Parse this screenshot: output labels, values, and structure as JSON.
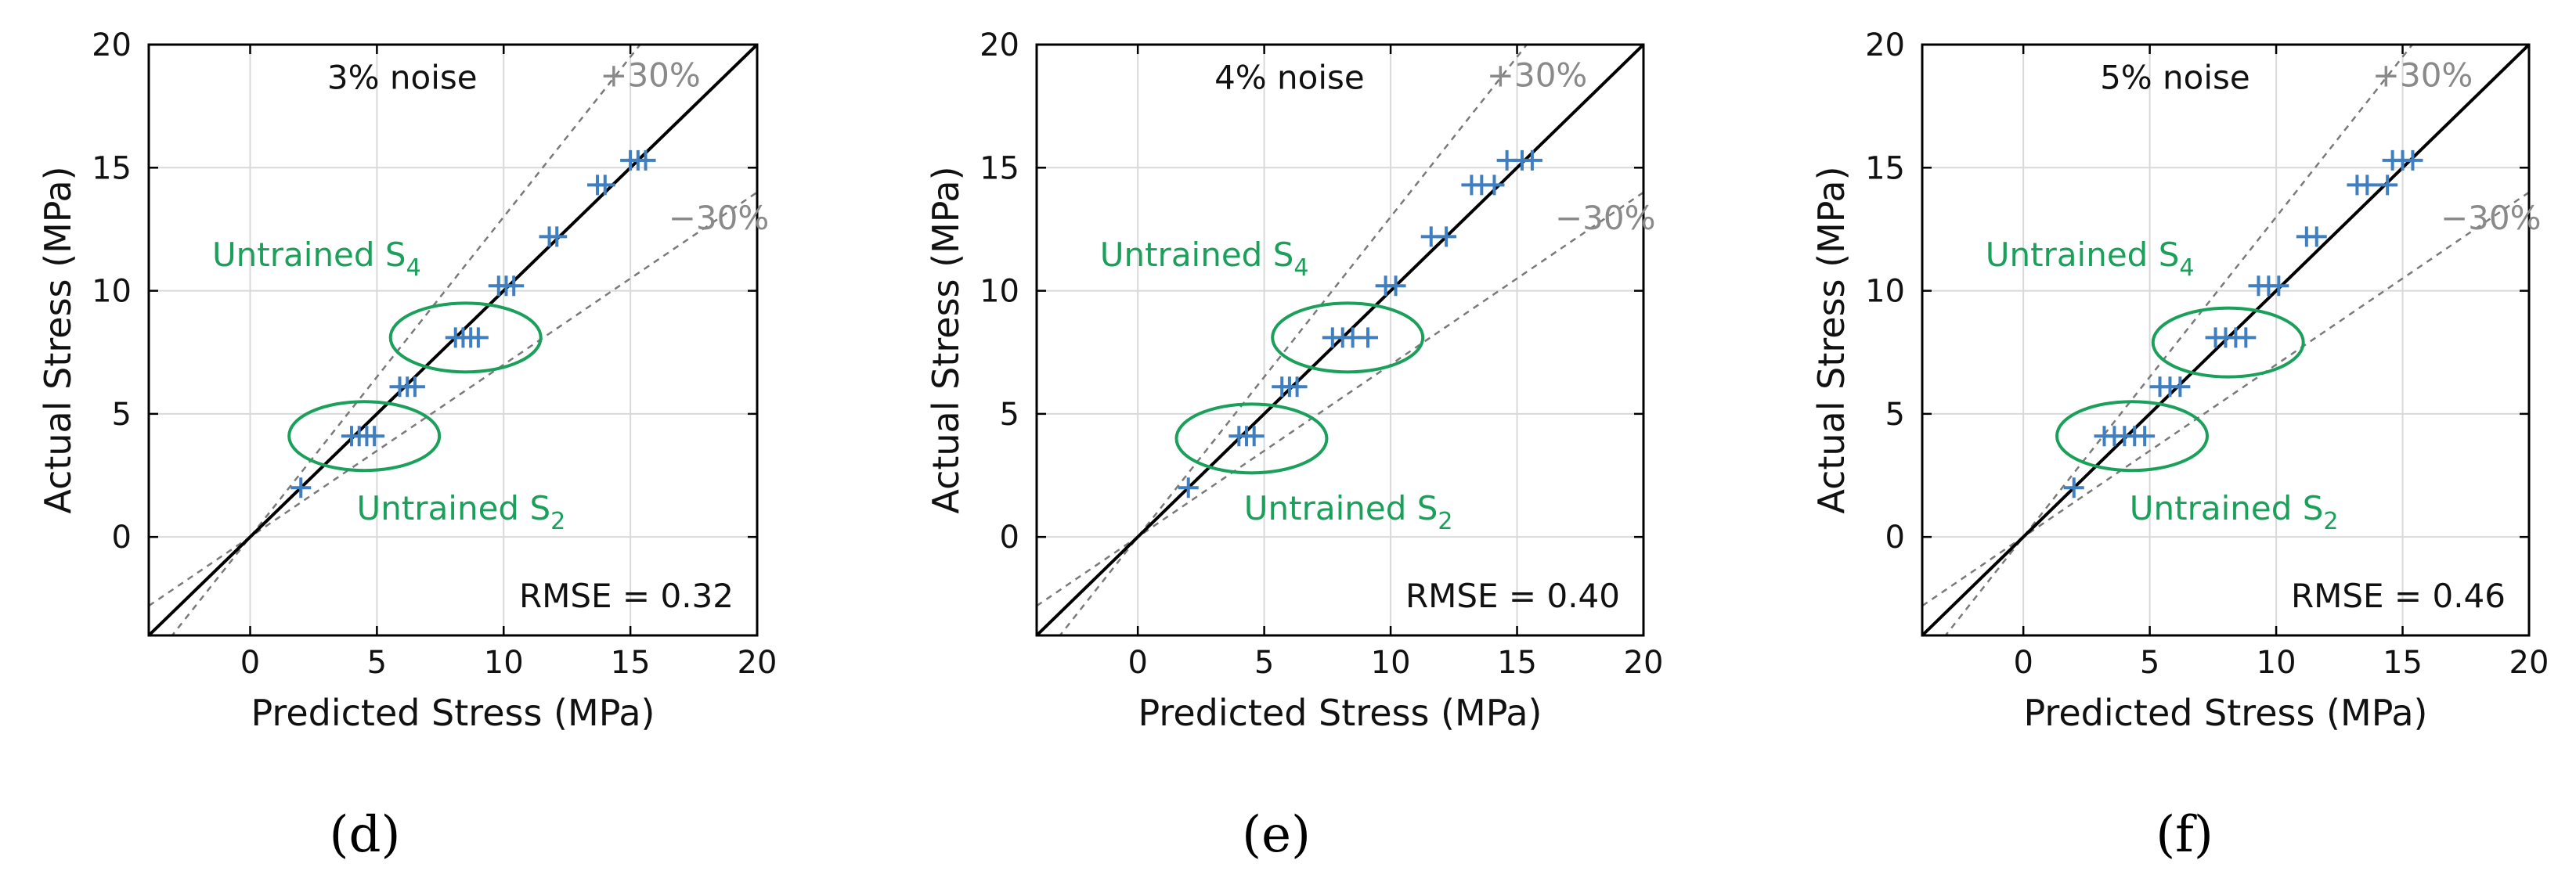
{
  "colors": {
    "marker": "#3f7fbf",
    "ideal": "#000000",
    "band": "#7a7a7a",
    "grid": "#d9d9d9",
    "ellipse": "#1aa05a",
    "band_label": "#8a8a8a"
  },
  "chart_data": [
    {
      "type": "scatter",
      "panel_label": "(d)",
      "noise_label": "3% noise",
      "rmse_label": "RMSE = 0.32",
      "xlabel": "Predicted Stress (MPa)",
      "ylabel": "Actual Stress (MPa)",
      "xlim": [
        -4,
        20
      ],
      "ylim": [
        -4,
        20
      ],
      "xticks": [
        "0",
        "5",
        "10",
        "15",
        "20"
      ],
      "yticks": [
        "0",
        "5",
        "10",
        "15",
        "20"
      ],
      "grid": true,
      "upper_band_label": "+30%",
      "lower_band_label": "−30%",
      "untrained_upper": {
        "text": "Untrained S",
        "sub": "4",
        "center": [
          8.5,
          8.1
        ]
      },
      "untrained_lower": {
        "text": "Untrained S",
        "sub": "2",
        "center": [
          4.5,
          4.1
        ]
      },
      "points": [
        [
          2.0,
          2.0
        ],
        [
          4.0,
          4.1
        ],
        [
          4.3,
          4.1
        ],
        [
          4.6,
          4.1
        ],
        [
          4.9,
          4.1
        ],
        [
          5.9,
          6.1
        ],
        [
          6.2,
          6.1
        ],
        [
          6.5,
          6.1
        ],
        [
          8.1,
          8.1
        ],
        [
          8.4,
          8.1
        ],
        [
          8.7,
          8.1
        ],
        [
          9.0,
          8.1
        ],
        [
          9.8,
          10.2
        ],
        [
          10.1,
          10.2
        ],
        [
          10.4,
          10.2
        ],
        [
          11.8,
          12.2
        ],
        [
          12.1,
          12.2
        ],
        [
          13.7,
          14.3
        ],
        [
          14.0,
          14.3
        ],
        [
          15.0,
          15.3
        ],
        [
          15.3,
          15.3
        ],
        [
          15.6,
          15.3
        ]
      ]
    },
    {
      "type": "scatter",
      "panel_label": "(e)",
      "noise_label": "4% noise",
      "rmse_label": "RMSE = 0.40",
      "xlabel": "Predicted Stress (MPa)",
      "ylabel": "Actual Stress (MPa)",
      "xlim": [
        -4,
        20
      ],
      "ylim": [
        -4,
        20
      ],
      "xticks": [
        "0",
        "5",
        "10",
        "15",
        "20"
      ],
      "yticks": [
        "0",
        "5",
        "10",
        "15",
        "20"
      ],
      "grid": true,
      "upper_band_label": "+30%",
      "lower_band_label": "−30%",
      "untrained_upper": {
        "text": "Untrained S",
        "sub": "4",
        "center": [
          8.3,
          8.1
        ]
      },
      "untrained_lower": {
        "text": "Untrained S",
        "sub": "2",
        "center": [
          4.5,
          4.0
        ]
      },
      "points": [
        [
          2.0,
          2.0
        ],
        [
          4.0,
          4.1
        ],
        [
          4.3,
          4.1
        ],
        [
          4.6,
          4.1
        ],
        [
          5.7,
          6.1
        ],
        [
          6.0,
          6.1
        ],
        [
          6.3,
          6.1
        ],
        [
          7.7,
          8.1
        ],
        [
          8.1,
          8.1
        ],
        [
          8.5,
          8.1
        ],
        [
          9.1,
          8.1
        ],
        [
          9.8,
          10.2
        ],
        [
          10.2,
          10.2
        ],
        [
          11.6,
          12.2
        ],
        [
          12.2,
          12.2
        ],
        [
          13.2,
          14.3
        ],
        [
          13.6,
          14.3
        ],
        [
          14.1,
          14.3
        ],
        [
          14.6,
          15.3
        ],
        [
          15.2,
          15.3
        ],
        [
          15.6,
          15.3
        ]
      ]
    },
    {
      "type": "scatter",
      "panel_label": "(f)",
      "noise_label": "5% noise",
      "rmse_label": "RMSE = 0.46",
      "xlabel": "Predicted Stress (MPa)",
      "ylabel": "Actual Stress (MPa)",
      "xlim": [
        -4,
        20
      ],
      "ylim": [
        -4,
        20
      ],
      "xticks": [
        "0",
        "5",
        "10",
        "15",
        "20"
      ],
      "yticks": [
        "0",
        "5",
        "10",
        "15",
        "20"
      ],
      "grid": true,
      "upper_band_label": "+30%",
      "lower_band_label": "−30%",
      "untrained_upper": {
        "text": "Untrained S",
        "sub": "4",
        "center": [
          8.1,
          7.9
        ]
      },
      "untrained_lower": {
        "text": "Untrained S",
        "sub": "2",
        "center": [
          4.3,
          4.1
        ]
      },
      "points": [
        [
          2.0,
          2.0
        ],
        [
          3.2,
          4.1
        ],
        [
          3.6,
          4.1
        ],
        [
          4.0,
          4.1
        ],
        [
          4.4,
          4.1
        ],
        [
          4.8,
          4.1
        ],
        [
          5.4,
          6.1
        ],
        [
          5.8,
          6.1
        ],
        [
          6.2,
          6.1
        ],
        [
          7.6,
          8.1
        ],
        [
          8.0,
          8.1
        ],
        [
          8.4,
          8.1
        ],
        [
          8.8,
          8.1
        ],
        [
          9.3,
          10.2
        ],
        [
          9.7,
          10.2
        ],
        [
          10.1,
          10.2
        ],
        [
          11.2,
          12.2
        ],
        [
          11.6,
          12.2
        ],
        [
          13.2,
          14.3
        ],
        [
          13.6,
          14.3
        ],
        [
          14.4,
          14.3
        ],
        [
          14.6,
          15.3
        ],
        [
          15.0,
          15.3
        ],
        [
          15.4,
          15.3
        ]
      ]
    }
  ]
}
